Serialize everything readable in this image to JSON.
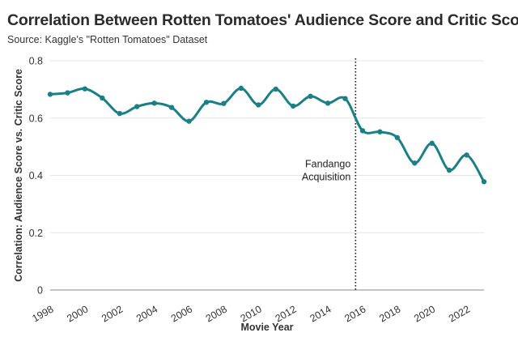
{
  "chart_data": {
    "type": "line",
    "title": "Correlation Between Rotten Tomatoes' Audience Score and Critic Score",
    "subtitle": "Source: Kaggle's \"Rotten Tomatoes\" Dataset",
    "xlabel": "Movie Year",
    "ylabel": "Correlation: Audience Score vs. Critic Score",
    "xlim": [
      1998,
      2023
    ],
    "ylim": [
      0,
      0.8
    ],
    "x_ticks": [
      1998,
      2000,
      2002,
      2004,
      2006,
      2008,
      2010,
      2012,
      2014,
      2016,
      2018,
      2020,
      2022
    ],
    "y_ticks": [
      0,
      0.2,
      0.4,
      0.6,
      0.8
    ],
    "y_tick_labels": [
      "0",
      "0.2",
      "0.4",
      "0.6",
      "0.8"
    ],
    "grid": "horizontal",
    "series": [
      {
        "name": "Correlation",
        "color": "#1a7f86",
        "x": [
          1998,
          1999,
          2000,
          2001,
          2002,
          2003,
          2004,
          2005,
          2006,
          2007,
          2008,
          2009,
          2010,
          2011,
          2012,
          2013,
          2014,
          2015,
          2016,
          2017,
          2018,
          2019,
          2020,
          2021,
          2022,
          2023
        ],
        "y": [
          0.683,
          0.688,
          0.702,
          0.67,
          0.616,
          0.64,
          0.652,
          0.637,
          0.589,
          0.655,
          0.651,
          0.704,
          0.646,
          0.701,
          0.642,
          0.676,
          0.652,
          0.668,
          0.556,
          0.552,
          0.532,
          0.443,
          0.512,
          0.418,
          0.471,
          0.378
        ]
      }
    ],
    "annotations": [
      {
        "x": 2015.6,
        "line": "dotted",
        "label_lines": [
          "Fandango",
          "Acquisition"
        ],
        "label_y": 0.428
      }
    ]
  }
}
